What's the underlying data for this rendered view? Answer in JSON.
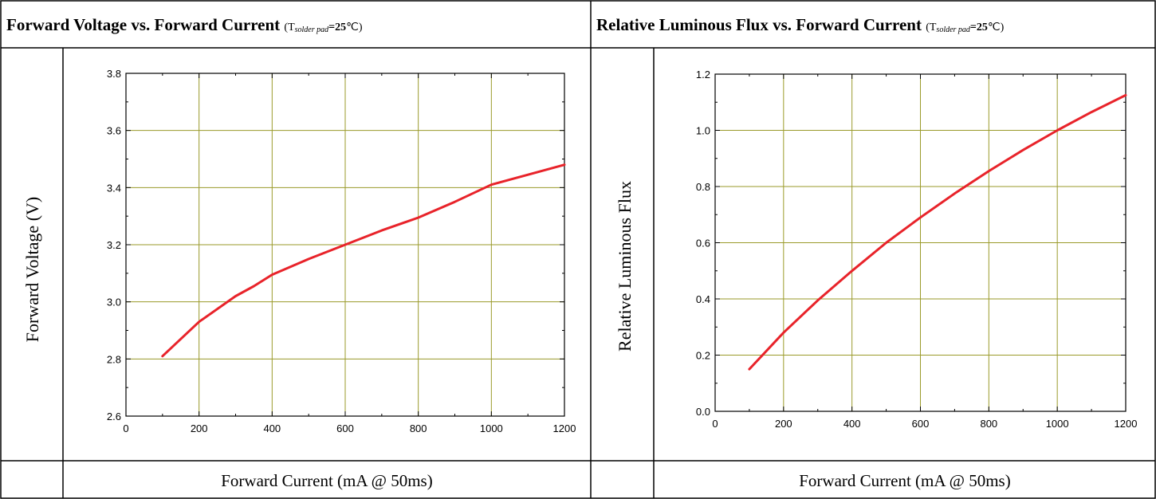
{
  "chart_data": [
    {
      "type": "line",
      "title": "Forward Voltage vs. Forward Current",
      "title_condition": {
        "prefix": "(T",
        "subscript": "solder pad",
        "value": "=25",
        "unit": "℃",
        "suffix": ")"
      },
      "xlabel": "Forward Current (mA @ 50ms)",
      "ylabel": "Forward Voltage (V)",
      "xlim": [
        0,
        1200
      ],
      "ylim": [
        2.6,
        3.8
      ],
      "x_ticks": [
        "0",
        "200",
        "400",
        "600",
        "800",
        "1000",
        "1200"
      ],
      "y_ticks": [
        "2.6",
        "2.8",
        "3.0",
        "3.2",
        "3.4",
        "3.6",
        "3.8"
      ],
      "grid": true,
      "line_color": "#e8232a",
      "grid_color": "#9a9a2a",
      "series": [
        {
          "x": [
            100,
            200,
            300,
            350,
            400,
            500,
            600,
            700,
            800,
            900,
            1000,
            1100,
            1200
          ],
          "values": [
            2.81,
            2.93,
            3.02,
            3.055,
            3.095,
            3.15,
            3.2,
            3.25,
            3.295,
            3.35,
            3.41,
            3.445,
            3.48
          ]
        }
      ]
    },
    {
      "type": "line",
      "title": "Relative Luminous Flux vs. Forward Current",
      "title_condition": {
        "prefix": "(T",
        "subscript": "solder pad",
        "value": "=25",
        "unit": "℃",
        "suffix": ")"
      },
      "xlabel": "Forward Current (mA @ 50ms)",
      "ylabel": "Relative Luminous Flux",
      "xlim": [
        0,
        1200
      ],
      "ylim": [
        0.0,
        1.2
      ],
      "x_ticks": [
        "0",
        "200",
        "400",
        "600",
        "800",
        "1000",
        "1200"
      ],
      "y_ticks": [
        "0.0",
        "0.2",
        "0.4",
        "0.6",
        "0.8",
        "1.0",
        "1.2"
      ],
      "grid": true,
      "line_color": "#e8232a",
      "grid_color": "#9a9a2a",
      "series": [
        {
          "x": [
            100,
            200,
            300,
            400,
            500,
            600,
            700,
            800,
            900,
            1000,
            1100,
            1200
          ],
          "values": [
            0.15,
            0.28,
            0.395,
            0.5,
            0.6,
            0.69,
            0.775,
            0.855,
            0.93,
            1.0,
            1.065,
            1.125
          ]
        }
      ]
    }
  ]
}
